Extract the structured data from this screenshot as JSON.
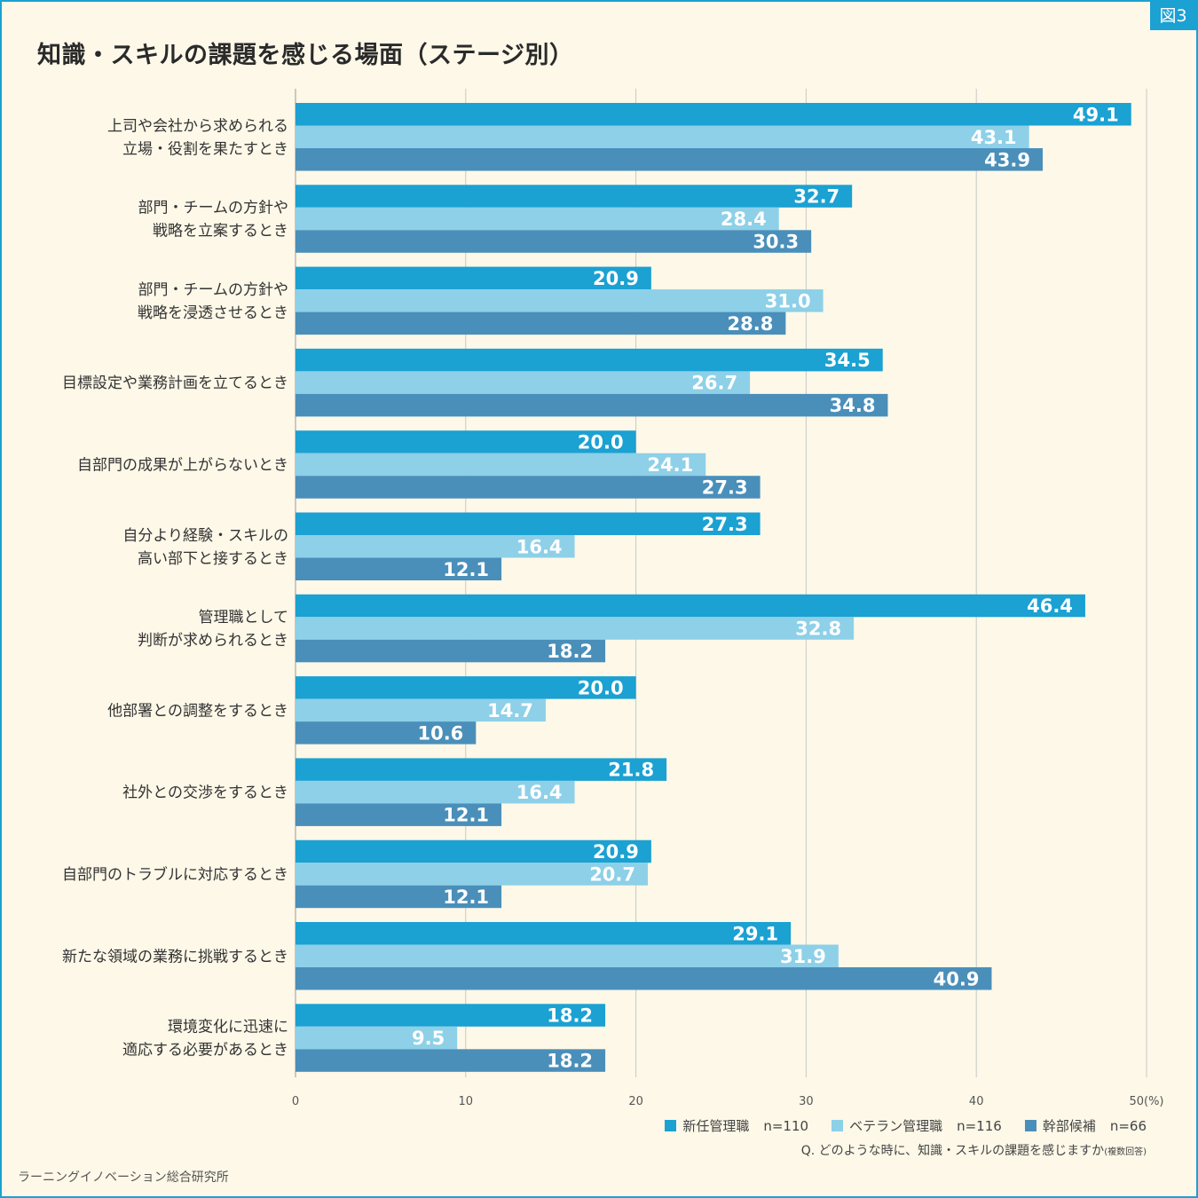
{
  "badge": "図3",
  "chart_data": {
    "type": "bar",
    "orientation": "horizontal",
    "title": "知識・スキルの課題を感じる場面（ステージ別）",
    "categories": [
      [
        "上司や会社から求められる",
        "立場・役割を果たすとき"
      ],
      [
        "部門・チームの方針や",
        "戦略を立案するとき"
      ],
      [
        "部門・チームの方針や",
        "戦略を浸透させるとき"
      ],
      [
        "目標設定や業務計画を立てるとき"
      ],
      [
        "自部門の成果が上がらないとき"
      ],
      [
        "自分より経験・スキルの",
        "高い部下と接するとき"
      ],
      [
        "管理職として",
        "判断が求められるとき"
      ],
      [
        "他部署との調整をするとき"
      ],
      [
        "社外との交渉をするとき"
      ],
      [
        "自部門のトラブルに対応するとき"
      ],
      [
        "新たな領域の業務に挑戦するとき"
      ],
      [
        "環境変化に迅速に",
        "適応する必要があるとき"
      ]
    ],
    "series": [
      {
        "name": "新任管理職",
        "n": "n=110",
        "color": "#1ba1d2",
        "values": [
          49.1,
          32.7,
          20.9,
          34.5,
          20.0,
          27.3,
          46.4,
          20.0,
          21.8,
          20.9,
          29.1,
          18.2
        ]
      },
      {
        "name": "ベテラン管理職",
        "n": "n=116",
        "color": "#8dd0e8",
        "values": [
          43.1,
          28.4,
          31.0,
          26.7,
          24.1,
          16.4,
          32.8,
          14.7,
          16.4,
          20.7,
          31.9,
          9.5
        ]
      },
      {
        "name": "幹部候補",
        "n": "n=66",
        "color": "#4a8fba",
        "values": [
          43.9,
          30.3,
          28.8,
          34.8,
          27.3,
          12.1,
          18.2,
          10.6,
          12.1,
          12.1,
          40.9,
          18.2
        ]
      }
    ],
    "x_ticks": [
      "0",
      "10",
      "20",
      "30",
      "40",
      "50(%)"
    ],
    "xlim": [
      0,
      50
    ],
    "unit": "%",
    "grid": true,
    "legend_position": "bottom-right"
  },
  "question": "Q. どのような時に、知識・スキルの課題を感じますか",
  "question_note": "(複数回答)",
  "source": "ラーニングイノベーション総合研究所"
}
